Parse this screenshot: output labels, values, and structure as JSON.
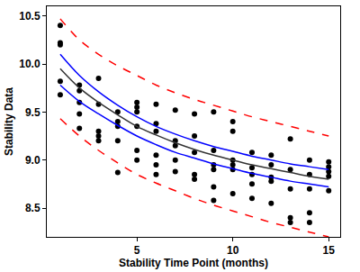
{
  "chart_data": {
    "type": "scatter",
    "xlabel": "Stability Time Point (months)",
    "ylabel": "Stability Data",
    "xlim": [
      0.3,
      15.6
    ],
    "ylim": [
      8.2,
      10.6
    ],
    "xticks": [
      5,
      10,
      15
    ],
    "yticks": [
      8.5,
      {
        "value": 9.0,
        "label": "9.0"
      },
      9.5,
      {
        "value": 10.0,
        "label": "10.0"
      },
      10.5
    ],
    "grid": false,
    "series": [
      {
        "type": "scatter",
        "marker": "circle",
        "color": "#000000",
        "x": [
          1,
          1,
          1,
          1,
          1,
          2,
          2,
          2,
          2,
          2,
          3,
          3,
          3,
          3,
          3,
          4,
          4,
          4,
          4,
          4,
          5,
          5,
          5,
          5,
          5,
          5,
          6,
          6,
          6,
          6,
          6,
          6,
          7,
          7,
          7,
          7,
          7,
          8,
          8,
          8,
          8,
          8,
          9,
          9,
          9,
          9,
          9,
          9,
          10,
          10,
          10,
          10,
          10,
          10,
          11,
          11,
          11,
          11,
          11,
          12,
          12,
          12,
          12,
          12,
          13,
          13,
          13,
          13,
          13,
          14,
          14,
          14,
          14,
          14,
          15,
          15,
          15,
          15,
          15
        ],
        "values": [
          10.4,
          10.2,
          10.22,
          9.82,
          9.68,
          9.78,
          9.72,
          9.6,
          9.48,
          9.33,
          9.85,
          9.58,
          9.3,
          9.25,
          9.2,
          9.5,
          9.4,
          9.35,
          9.2,
          8.87,
          9.6,
          9.55,
          9.5,
          9.35,
          9.1,
          9.0,
          9.58,
          9.38,
          9.3,
          9.05,
          8.95,
          8.85,
          9.52,
          9.2,
          9.15,
          9.0,
          8.88,
          9.48,
          9.25,
          9.08,
          8.85,
          8.8,
          9.5,
          9.1,
          8.95,
          8.9,
          8.72,
          8.58,
          9.4,
          9.3,
          9.0,
          8.95,
          8.9,
          8.65,
          9.08,
          8.92,
          8.85,
          8.75,
          8.6,
          9.05,
          8.95,
          8.82,
          8.78,
          8.55,
          9.22,
          8.9,
          8.7,
          8.4,
          8.35,
          9.0,
          8.85,
          8.7,
          8.45,
          8.35,
          8.98,
          8.93,
          8.88,
          8.83,
          8.68
        ]
      },
      {
        "type": "line",
        "line_style": "solid",
        "color": "#333333",
        "x": [
          1,
          2,
          3,
          4,
          5,
          6,
          7,
          8,
          9,
          10,
          11,
          12,
          13,
          14,
          15
        ],
        "values": [
          9.95,
          9.75,
          9.6,
          9.47,
          9.35,
          9.26,
          9.18,
          9.11,
          9.05,
          9.0,
          8.95,
          8.91,
          8.87,
          8.83,
          8.8
        ]
      },
      {
        "type": "line",
        "line_style": "solid",
        "color": "#0000ff",
        "x": [
          1,
          2,
          3,
          4,
          5,
          6,
          7,
          8,
          9,
          10,
          11,
          12,
          13,
          14,
          15
        ],
        "values": [
          10.1,
          9.88,
          9.71,
          9.57,
          9.45,
          9.35,
          9.27,
          9.2,
          9.14,
          9.09,
          9.04,
          9.0,
          8.96,
          8.93,
          8.9
        ]
      },
      {
        "type": "line",
        "line_style": "solid",
        "color": "#0000ff",
        "x": [
          1,
          2,
          3,
          4,
          5,
          6,
          7,
          8,
          9,
          10,
          11,
          12,
          13,
          14,
          15
        ],
        "values": [
          9.78,
          9.61,
          9.48,
          9.36,
          9.25,
          9.16,
          9.08,
          9.02,
          8.96,
          8.91,
          8.86,
          8.82,
          8.78,
          8.75,
          8.72
        ]
      },
      {
        "type": "line",
        "line_style": "dashed",
        "color": "#ff0000",
        "x": [
          1,
          2,
          3,
          4,
          5,
          6,
          7,
          8,
          9,
          10,
          11,
          12,
          13,
          14,
          15
        ],
        "values": [
          10.47,
          10.25,
          10.1,
          9.98,
          9.88,
          9.78,
          9.7,
          9.63,
          9.57,
          9.51,
          9.45,
          9.4,
          9.35,
          9.3,
          9.25
        ]
      },
      {
        "type": "line",
        "line_style": "dashed",
        "color": "#ff0000",
        "x": [
          1,
          2,
          3,
          4,
          5,
          6,
          7,
          8,
          9,
          10,
          11,
          12,
          13,
          14,
          15
        ],
        "values": [
          9.43,
          9.25,
          9.1,
          8.97,
          8.85,
          8.76,
          8.68,
          8.6,
          8.53,
          8.47,
          8.41,
          8.35,
          8.3,
          8.25,
          8.2
        ]
      }
    ]
  }
}
